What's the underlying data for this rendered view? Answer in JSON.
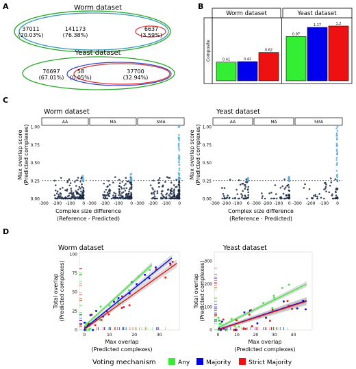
{
  "panel_letters": {
    "a": "A",
    "b": "B",
    "c": "C",
    "d": "D"
  },
  "venn": {
    "worm_title": "Worm dataset",
    "yeast_title": "Yeast dataset",
    "worm": {
      "left": {
        "count": "37011",
        "pct": "(20.03%)"
      },
      "center": {
        "count": "141173",
        "pct": "(76.38%)"
      },
      "right": {
        "count": "6637",
        "pct": "(3.59%)"
      }
    },
    "yeast": {
      "left": {
        "count": "76697",
        "pct": "(67.01%)"
      },
      "center": {
        "count": "58",
        "pct": "(0.05%)"
      },
      "right": {
        "count": "37700",
        "pct": "(32.94%)"
      }
    },
    "colors": {
      "any": "#22aa22",
      "majority": "#3344cc",
      "strict": "#dd3333",
      "inner": "#3399bb"
    }
  },
  "chart_data": [
    {
      "type": "bar",
      "panel": "B",
      "facet_strip_label": "Composite",
      "facets": [
        "Worm dataset",
        "Yeast dataset"
      ],
      "categories": [
        "Any",
        "Majority",
        "Strict Majority"
      ],
      "series": [
        {
          "facet": "Worm dataset",
          "values": [
            0.41,
            0.42,
            0.62
          ],
          "labels": [
            "0.41",
            "0.42",
            "0.62"
          ]
        },
        {
          "facet": "Yeast dataset",
          "values": [
            0.97,
            1.17,
            1.2
          ],
          "labels": [
            "0.97",
            "1.17",
            "1.2"
          ]
        }
      ],
      "ylim": [
        0,
        1.35
      ],
      "colors": [
        "#33ee33",
        "#0000ee",
        "#ee1111"
      ]
    },
    {
      "type": "scatter",
      "panel": "C",
      "titles": [
        "Worm dataset",
        "Yeast dataset"
      ],
      "facets": [
        "AA",
        "MA",
        "SMA"
      ],
      "ylabel": [
        "Max overlap score",
        "(Predicted complexes)"
      ],
      "xlabel": [
        "Complex size difference",
        "(Reference - Predicted)"
      ],
      "x_ticks": [
        "-300",
        "-200",
        "-100",
        "0"
      ],
      "y_ticks": [
        "0.00",
        "0.25",
        "0.50",
        "0.75",
        "1.00"
      ],
      "xlim": [
        -300,
        20
      ],
      "ylim": [
        0,
        1
      ],
      "threshold": 0.25,
      "colors": {
        "above": "#5aaedc",
        "below": "#1b2a44"
      }
    },
    {
      "type": "scatter",
      "panel": "D",
      "titles": [
        "Worm dataset",
        "Yeast dataset"
      ],
      "xlabel": [
        "Max overlap",
        "(Predicted complexes)"
      ],
      "ylabel": [
        "Total overlap",
        "(Predicted complexes)"
      ],
      "worm": {
        "x_ticks": [
          "0",
          "10",
          "20",
          "30"
        ],
        "y_ticks": [
          "0",
          "25",
          "50",
          "75",
          "100"
        ],
        "xlim": [
          -2,
          38
        ],
        "ylim": [
          0,
          103
        ],
        "fits": [
          {
            "series": "Any",
            "x": [
              0,
              27
            ],
            "y": [
              5,
              86
            ]
          },
          {
            "series": "Majority",
            "x": [
              0,
              35
            ],
            "y": [
              2,
              95
            ]
          },
          {
            "series": "Strict Majority",
            "x": [
              0,
              37
            ],
            "y": [
              1,
              88
            ]
          }
        ]
      },
      "yeast": {
        "x_ticks": [
          "0",
          "10",
          "20",
          "30",
          "40"
        ],
        "y_ticks": [
          "0",
          "100",
          "200",
          "300"
        ],
        "xlim": [
          -2,
          50
        ],
        "ylim": [
          0,
          340
        ],
        "fits": [
          {
            "series": "Any",
            "x": [
              0,
              47
            ],
            "y": [
              10,
              200
            ]
          },
          {
            "series": "Majority",
            "x": [
              0,
              47
            ],
            "y": [
              2,
              128
            ]
          },
          {
            "series": "Strict Majority",
            "x": [
              0,
              47
            ],
            "y": [
              1,
              125
            ]
          }
        ]
      }
    }
  ],
  "legend": {
    "title": "Voting mechanism",
    "items": [
      {
        "label": "Any",
        "color": "#33ee33"
      },
      {
        "label": "Majority",
        "color": "#0000ee"
      },
      {
        "label": "Strict Majority",
        "color": "#ee1111"
      }
    ]
  }
}
